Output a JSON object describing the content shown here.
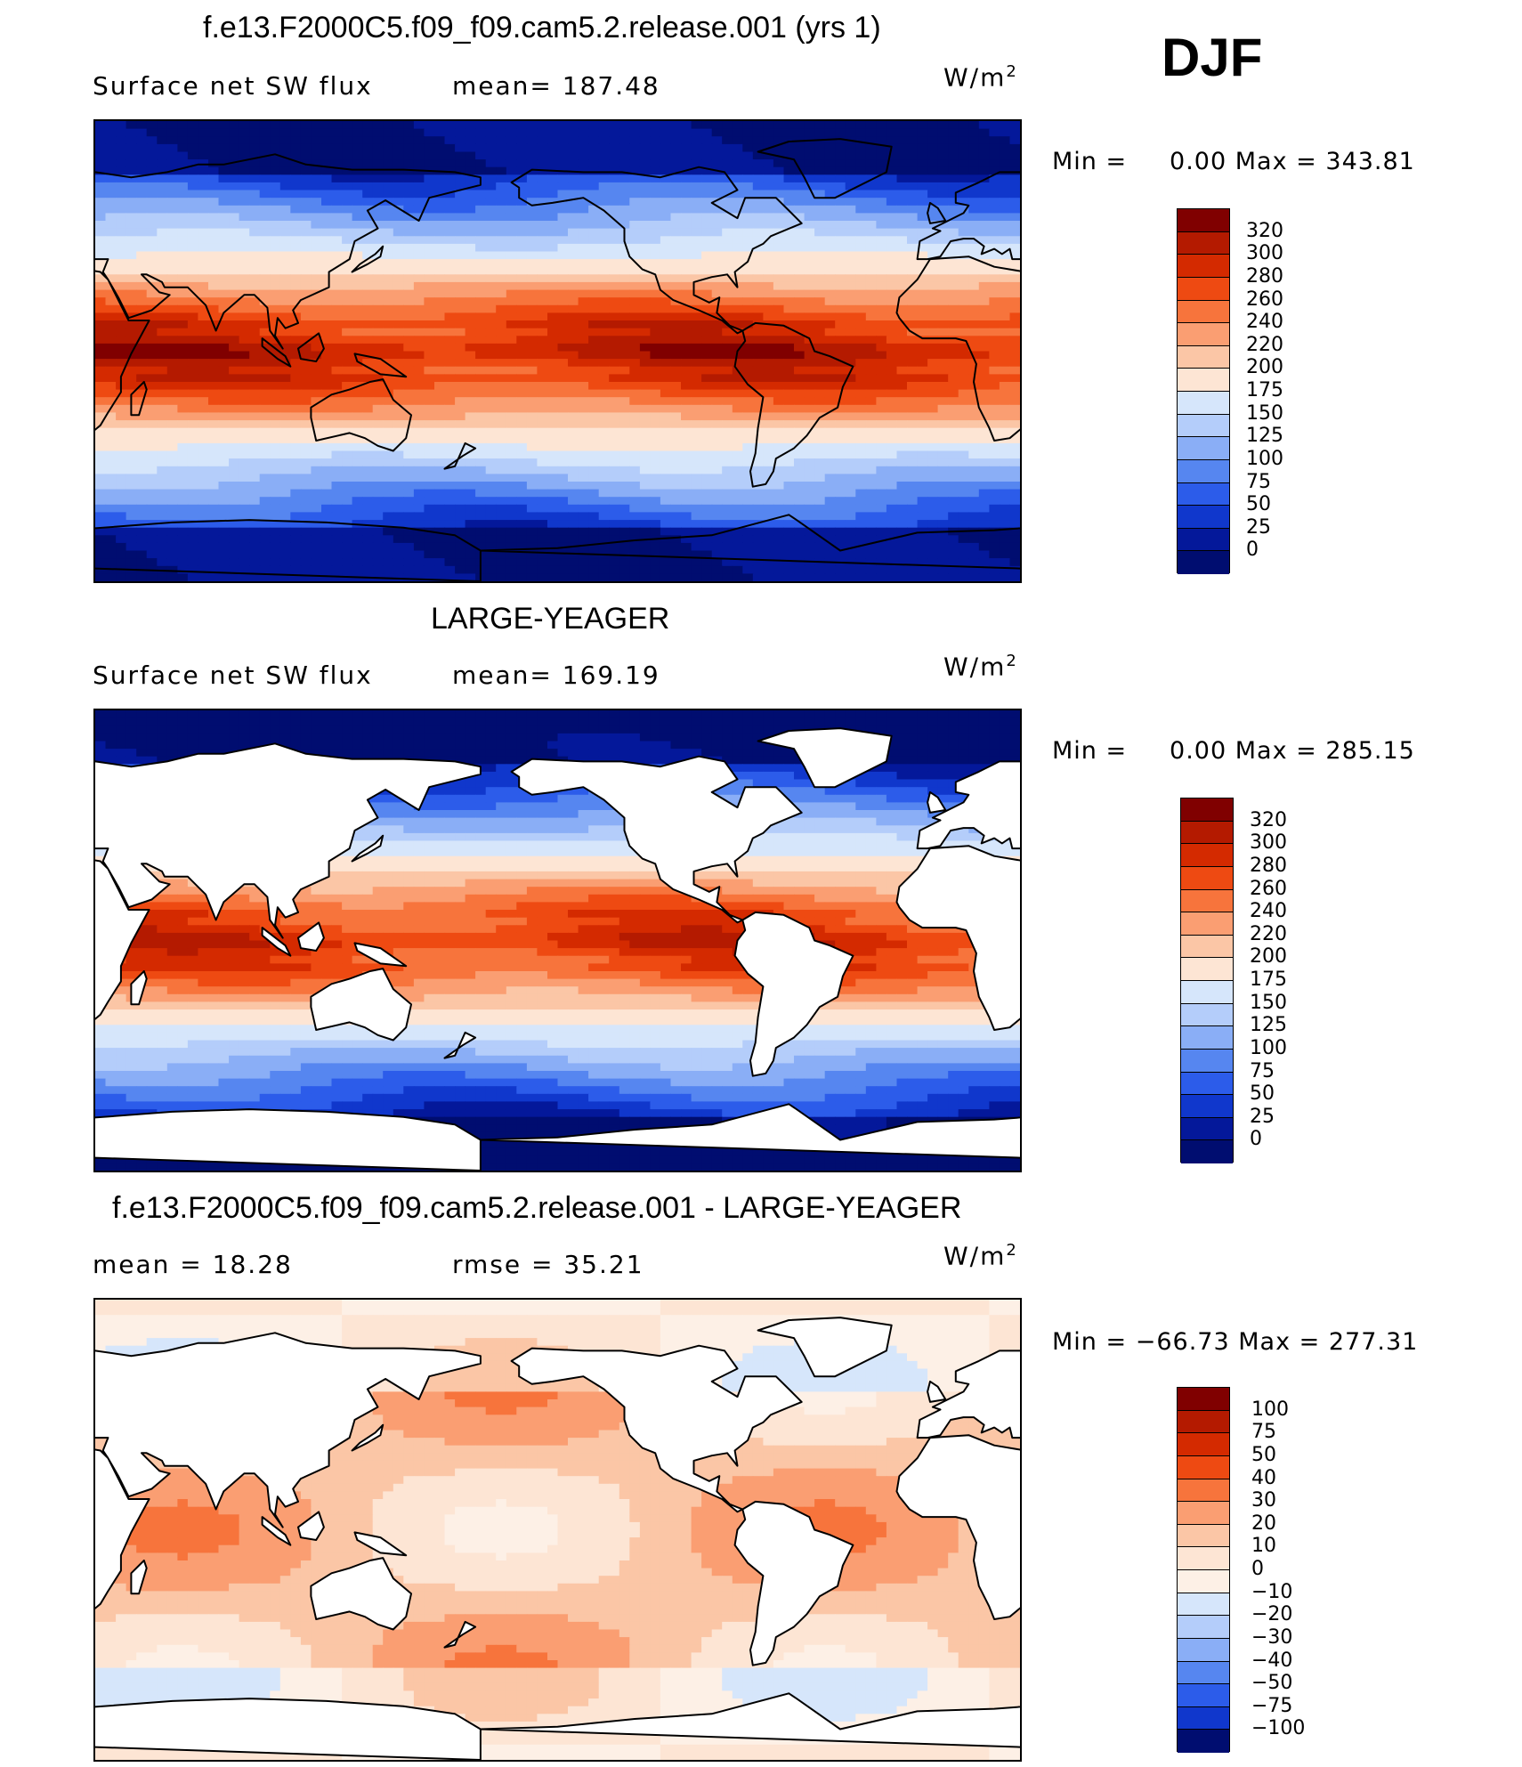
{
  "season": "DJF",
  "units": "W/m",
  "units_exp": "2",
  "panels": [
    {
      "title": "f.e13.F2000C5.f09_f09.cam5.2.release.001 (yrs 1)",
      "left_text": "Surface net SW flux",
      "right_text": "mean= 187.48",
      "min_text": "Min =",
      "min_value": "0.00",
      "max_text": "Max =",
      "max_value": "343.81",
      "mask_land": false
    },
    {
      "title": "LARGE-YEAGER",
      "left_text": "Surface net SW flux",
      "right_text": "mean= 169.19",
      "min_text": "Min =",
      "min_value": "0.00",
      "max_text": "Max =",
      "max_value": "285.15",
      "mask_land": true
    },
    {
      "title": "f.e13.F2000C5.f09_f09.cam5.2.release.001 - LARGE-YEAGER",
      "left_text": "mean =   18.28",
      "right_text": "rmse =   35.21",
      "min_text": "Min =",
      "min_value": "−66.73",
      "max_text": "Max =",
      "max_value": "277.31",
      "mask_land": true
    }
  ],
  "colorbar_levels": [
    "320",
    "300",
    "280",
    "260",
    "240",
    "220",
    "200",
    "175",
    "150",
    "125",
    "100",
    "75",
    "50",
    "25",
    "0"
  ],
  "colorbar_colors": [
    "#800000",
    "#b41a00",
    "#d42a00",
    "#ee4a12",
    "#f7743c",
    "#fa9e72",
    "#fbc6a6",
    "#fde5d4",
    "#d6e6fb",
    "#b4cdfa",
    "#8aaef6",
    "#5686f0",
    "#2c5cea",
    "#1037cc",
    "#04189a",
    "#000d70"
  ],
  "diff_levels": [
    "100",
    "75",
    "50",
    "40",
    "30",
    "20",
    "10",
    "0",
    "−10",
    "−20",
    "−30",
    "−40",
    "−50",
    "−75",
    "−100"
  ],
  "diff_colors": [
    "#800000",
    "#b41a00",
    "#d42a00",
    "#ee4a12",
    "#f7743c",
    "#fa9e72",
    "#fbc6a6",
    "#fde5d4",
    "#fdf0e6",
    "#d6e6fb",
    "#b4cdfa",
    "#8aaef6",
    "#5686f0",
    "#2c5cea",
    "#1037cc",
    "#000d70"
  ]
}
